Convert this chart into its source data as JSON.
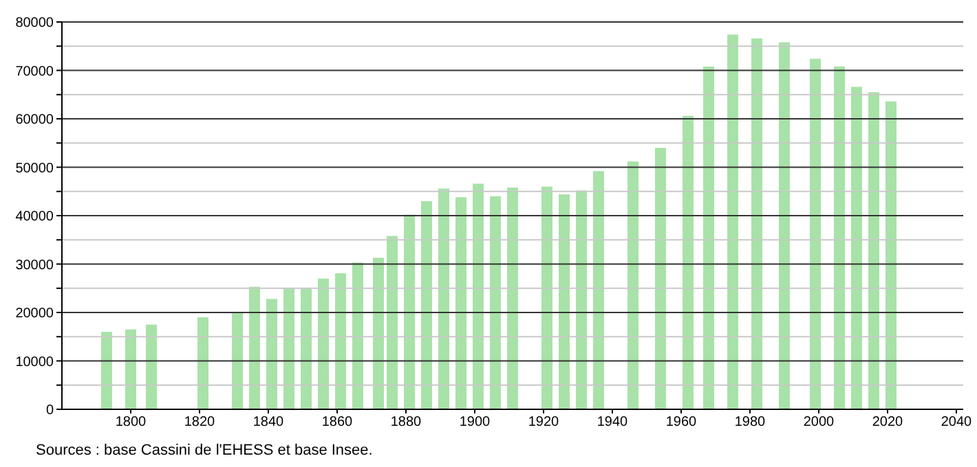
{
  "chart_data": {
    "type": "bar",
    "x": [
      1793,
      1800,
      1806,
      1821,
      1831,
      1836,
      1841,
      1846,
      1851,
      1856,
      1861,
      1866,
      1872,
      1876,
      1881,
      1886,
      1891,
      1896,
      1901,
      1906,
      1911,
      1921,
      1926,
      1931,
      1936,
      1946,
      1954,
      1962,
      1968,
      1975,
      1982,
      1990,
      1999,
      2006,
      2011,
      2016,
      2021
    ],
    "values": [
      16000,
      16500,
      17500,
      19000,
      20000,
      25300,
      22800,
      25000,
      25000,
      27000,
      28100,
      30300,
      31300,
      35800,
      40200,
      43000,
      45600,
      43800,
      46600,
      44000,
      45800,
      46000,
      44400,
      45200,
      49200,
      51200,
      54000,
      60600,
      70800,
      77400,
      76600,
      75800,
      72400,
      70800,
      66600,
      65500,
      63600
    ],
    "color": "#a8e2a8",
    "xlim": [
      1780,
      2042
    ],
    "xticks": [
      1800,
      1820,
      1840,
      1860,
      1880,
      1900,
      1920,
      1940,
      1960,
      1980,
      2000,
      2020,
      2040
    ],
    "ylim": [
      0,
      80000
    ],
    "yticks": [
      0,
      {
        "value": 5000,
        "label": null
      },
      10000,
      {
        "value": 15000,
        "label": null
      },
      20000,
      {
        "value": 25000,
        "label": null
      },
      30000,
      {
        "value": 35000,
        "label": null
      },
      40000,
      {
        "value": 45000,
        "label": null
      },
      50000,
      {
        "value": 55000,
        "label": null
      },
      60000,
      {
        "value": 65000,
        "label": null
      },
      70000,
      {
        "value": 75000,
        "label": null
      },
      80000
    ],
    "grid": "y",
    "annotations": [
      "Sources : base Cassini de l'EHESS et base Insee."
    ]
  }
}
